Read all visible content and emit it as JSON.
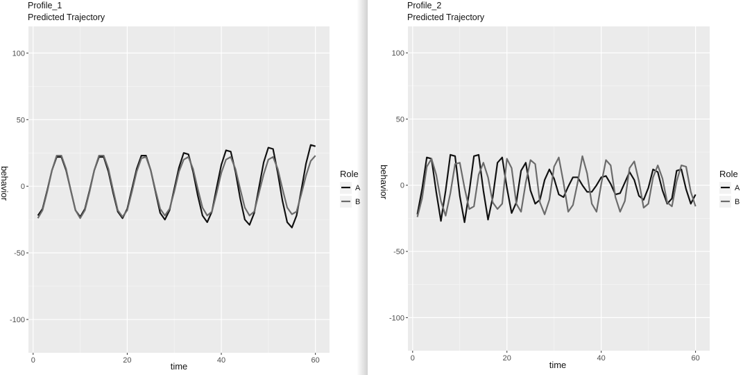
{
  "chart_data": [
    {
      "type": "line",
      "title": "Profile_1",
      "subtitle": "Predicted Trajectory",
      "xlabel": "time",
      "ylabel": "behavior",
      "xlim": [
        -1,
        63
      ],
      "ylim": [
        -125,
        120
      ],
      "xticks": [
        0,
        20,
        40,
        60
      ],
      "yticks": [
        -100,
        -50,
        0,
        50,
        100
      ],
      "legend": {
        "title": "Role",
        "position": "right"
      },
      "grid": true,
      "x": [
        1,
        2,
        3,
        4,
        5,
        6,
        7,
        8,
        9,
        10,
        11,
        12,
        13,
        14,
        15,
        16,
        17,
        18,
        19,
        20,
        21,
        22,
        23,
        24,
        25,
        26,
        27,
        28,
        29,
        30,
        31,
        32,
        33,
        34,
        35,
        36,
        37,
        38,
        39,
        40,
        41,
        42,
        43,
        44,
        45,
        46,
        47,
        48,
        49,
        50,
        51,
        52,
        53,
        54,
        55,
        56,
        57,
        58,
        59,
        60
      ],
      "series": [
        {
          "name": "A",
          "color": "#111111",
          "values": [
            -22,
            -17,
            -3,
            12,
            22,
            22,
            12,
            -3,
            -18,
            -23,
            -17,
            -3,
            12,
            22,
            22,
            11,
            -5,
            -19,
            -24,
            -17,
            -2,
            13,
            23,
            23,
            12,
            -4,
            -20,
            -25,
            -18,
            -2,
            14,
            25,
            24,
            11,
            -7,
            -22,
            -27,
            -19,
            -1,
            16,
            27,
            26,
            11,
            -9,
            -25,
            -29,
            -20,
            -1,
            18,
            29,
            28,
            10,
            -11,
            -27,
            -31,
            -22,
            -3,
            17,
            31,
            30
          ],
          "color_name": "black"
        },
        {
          "name": "B",
          "color": "#6b6b6b",
          "values": [
            -24,
            -18,
            -4,
            12,
            23,
            23,
            13,
            -3,
            -18,
            -24,
            -18,
            -4,
            12,
            23,
            23,
            13,
            -3,
            -18,
            -23,
            -18,
            -4,
            11,
            21,
            22,
            12,
            -3,
            -17,
            -22,
            -17,
            -4,
            11,
            20,
            22,
            13,
            -2,
            -16,
            -22,
            -19,
            -5,
            10,
            20,
            22,
            13,
            -2,
            -16,
            -22,
            -19,
            -5,
            9,
            20,
            22,
            13,
            -2,
            -16,
            -21,
            -19,
            -6,
            8,
            19,
            23
          ]
        }
      ]
    },
    {
      "type": "line",
      "title": "Profile_2",
      "subtitle": "Predicted Trajectory",
      "xlabel": "time",
      "ylabel": "behavior",
      "xlim": [
        -1,
        63
      ],
      "ylim": [
        -125,
        120
      ],
      "xticks": [
        0,
        20,
        40,
        60
      ],
      "yticks": [
        -100,
        -50,
        0,
        50,
        100
      ],
      "legend": {
        "title": "Role",
        "position": "right"
      },
      "grid": true,
      "x": [
        1,
        2,
        3,
        4,
        5,
        6,
        7,
        8,
        9,
        10,
        11,
        12,
        13,
        14,
        15,
        16,
        17,
        18,
        19,
        20,
        21,
        22,
        23,
        24,
        25,
        26,
        27,
        28,
        29,
        30,
        31,
        32,
        33,
        34,
        35,
        36,
        37,
        38,
        39,
        40,
        41,
        42,
        43,
        44,
        45,
        46,
        47,
        48,
        49,
        50,
        51,
        52,
        53,
        54,
        55,
        56,
        57,
        58,
        59,
        60
      ],
      "series": [
        {
          "name": "A",
          "color": "#111111",
          "values": [
            -22,
            -3,
            21,
            20,
            -5,
            -27,
            -4,
            23,
            22,
            -8,
            -28,
            -5,
            22,
            23,
            -4,
            -26,
            -9,
            17,
            21,
            -2,
            -21,
            -13,
            11,
            17,
            -4,
            -14,
            -11,
            4,
            12,
            5,
            -7,
            -9,
            -1,
            6,
            6,
            0,
            -5,
            -5,
            0,
            6,
            7,
            1,
            -7,
            -6,
            2,
            10,
            4,
            -8,
            -11,
            -2,
            12,
            10,
            -4,
            -14,
            -10,
            11,
            12,
            -3,
            -14,
            -7
          ]
        },
        {
          "name": "B",
          "color": "#6b6b6b",
          "values": [
            -24,
            -10,
            14,
            20,
            8,
            -12,
            -23,
            -6,
            16,
            17,
            -2,
            -18,
            -16,
            8,
            17,
            6,
            -13,
            -18,
            -14,
            20,
            13,
            -14,
            -20,
            2,
            19,
            16,
            -13,
            -22,
            -11,
            14,
            21,
            2,
            -20,
            -15,
            2,
            22,
            9,
            -14,
            -20,
            1,
            19,
            15,
            -9,
            -20,
            -12,
            13,
            18,
            3,
            -17,
            -14,
            6,
            15,
            5,
            -13,
            -16,
            3,
            15,
            14,
            -5,
            -16
          ]
        }
      ]
    }
  ]
}
